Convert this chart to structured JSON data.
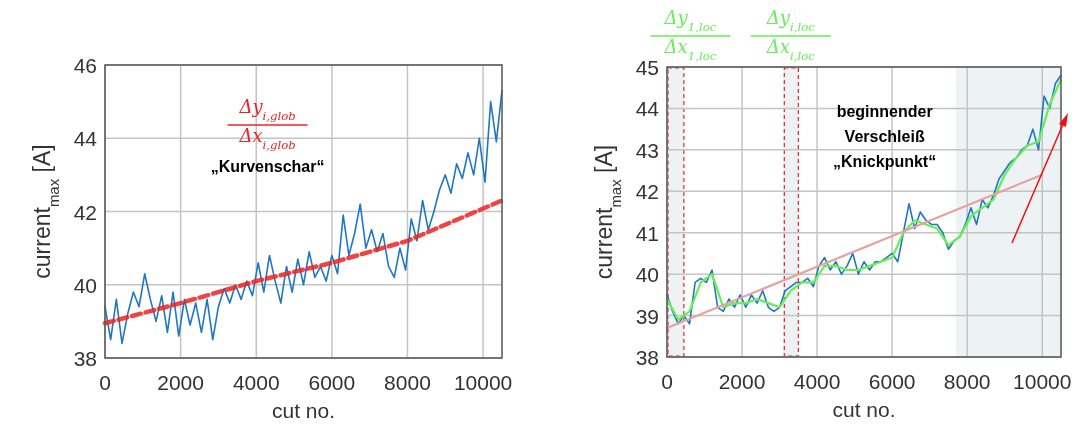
{
  "chart_data": [
    {
      "type": "line",
      "xlabel": "cut no.",
      "ylabel": "current$_{max}$ [A]",
      "xlim": [
        0,
        10500
      ],
      "ylim": [
        38,
        46
      ],
      "xticks": [
        0,
        2000,
        4000,
        6000,
        8000,
        10000
      ],
      "yticks": [
        38,
        40,
        42,
        44,
        46
      ],
      "grid": true,
      "annotations": [
        "Δy$_{i,glob}$",
        "Δx$_{i,glob}$",
        "„Kurvenschar“"
      ],
      "series": [
        {
          "color": "#1f77c4",
          "x": [
            0,
            150,
            300,
            450,
            600,
            750,
            900,
            1050,
            1200,
            1350,
            1500,
            1650,
            1800,
            1950,
            2100,
            2250,
            2400,
            2550,
            2700,
            2850,
            3000,
            3150,
            3300,
            3450,
            3600,
            3750,
            3900,
            4050,
            4200,
            4350,
            4500,
            4650,
            4800,
            4950,
            5100,
            5250,
            5400,
            5550,
            5700,
            5850,
            6000,
            6150,
            6300,
            6450,
            6600,
            6750,
            6900,
            7050,
            7200,
            7350,
            7500,
            7650,
            7800,
            7950,
            8100,
            8250,
            8400,
            8550,
            8700,
            8850,
            9000,
            9150,
            9300,
            9450,
            9600,
            9750,
            9900,
            10050,
            10200,
            10350,
            10500
          ],
          "values": [
            39.4,
            38.5,
            39.6,
            38.4,
            39.2,
            39.8,
            39.4,
            40.3,
            39.6,
            39.0,
            39.7,
            38.7,
            39.8,
            38.6,
            39.6,
            38.9,
            39.5,
            38.7,
            39.6,
            38.5,
            39.4,
            39.9,
            39.5,
            40.0,
            39.6,
            40.1,
            39.7,
            40.6,
            39.8,
            40.8,
            40.1,
            39.5,
            40.5,
            39.8,
            40.7,
            40.0,
            40.9,
            40.2,
            40.5,
            40.1,
            40.8,
            40.3,
            41.9,
            40.8,
            41.4,
            42.2,
            41.0,
            41.5,
            40.9,
            41.4,
            40.5,
            40.2,
            41.0,
            40.4,
            41.8,
            41.2,
            42.3,
            41.5,
            42.0,
            42.6,
            43.0,
            42.5,
            43.3,
            42.9,
            43.6,
            43.0,
            44.0,
            42.8,
            45.0,
            43.9,
            45.3
          ]
        },
        {
          "color": "#ee2222",
          "line_style": "dashed",
          "x": [
            0,
            2000,
            4000,
            6000,
            8000,
            10500
          ],
          "values": [
            38.95,
            39.5,
            40.1,
            40.6,
            41.2,
            42.3
          ]
        }
      ]
    },
    {
      "type": "line",
      "xlabel": "cut no.",
      "ylabel": "current$_{max}$ [A]",
      "xlim": [
        0,
        10500
      ],
      "ylim": [
        38,
        45
      ],
      "xticks": [
        0,
        2000,
        4000,
        6000,
        8000,
        10000
      ],
      "yticks": [
        38,
        39,
        40,
        41,
        42,
        43,
        44,
        45
      ],
      "grid": true,
      "annotations": [
        "Δy$_{1,loc}$",
        "Δx$_{1,loc}$",
        "Δy$_{i,loc}$",
        "Δx$_{i,loc}$",
        "beginnender Verschleiß „Knickpunkt“"
      ],
      "bands": [
        {
          "axis": "x",
          "from": 0,
          "to": 450,
          "color": "#edf2f5"
        },
        {
          "axis": "x",
          "from": 3100,
          "to": 3500,
          "color": "#edf2f5"
        },
        {
          "axis": "x",
          "from": 7700,
          "to": 10500,
          "color": "#edf2f5"
        }
      ],
      "series": [
        {
          "color": "#1f77c4",
          "x": [
            0,
            150,
            300,
            450,
            600,
            750,
            900,
            1050,
            1200,
            1350,
            1500,
            1650,
            1800,
            1950,
            2100,
            2250,
            2400,
            2550,
            2700,
            2850,
            3000,
            3150,
            3300,
            3450,
            3600,
            3750,
            3900,
            4050,
            4200,
            4350,
            4500,
            4650,
            4800,
            4950,
            5100,
            5250,
            5400,
            5550,
            5700,
            5850,
            6000,
            6150,
            6300,
            6450,
            6600,
            6750,
            6900,
            7050,
            7200,
            7350,
            7500,
            7650,
            7800,
            7950,
            8100,
            8250,
            8400,
            8550,
            8700,
            8850,
            9000,
            9150,
            9300,
            9450,
            9600,
            9750,
            9900,
            10050,
            10200,
            10350,
            10500
          ],
          "values": [
            39.5,
            39.1,
            38.8,
            39.0,
            38.8,
            39.8,
            39.9,
            39.8,
            40.1,
            39.2,
            39.1,
            39.4,
            39.2,
            39.5,
            39.2,
            39.5,
            39.3,
            39.6,
            39.2,
            39.1,
            39.2,
            39.6,
            39.7,
            39.8,
            39.8,
            39.9,
            39.7,
            40.2,
            40.4,
            40.1,
            40.3,
            40.0,
            40.2,
            40.5,
            40.0,
            40.3,
            40.1,
            40.3,
            40.3,
            40.4,
            40.5,
            40.3,
            41.0,
            41.7,
            41.1,
            41.5,
            41.3,
            41.2,
            41.2,
            41.0,
            40.6,
            40.8,
            40.9,
            41.2,
            41.6,
            41.2,
            41.8,
            41.6,
            41.9,
            42.3,
            42.5,
            42.7,
            42.8,
            43.0,
            43.1,
            43.5,
            43.0,
            44.3,
            44.0,
            44.6,
            44.8
          ]
        },
        {
          "color": "#66ee55",
          "x": [
            0,
            300,
            600,
            900,
            1200,
            1500,
            1800,
            2100,
            2400,
            2700,
            3000,
            3300,
            3600,
            3900,
            4200,
            4500,
            4800,
            5100,
            5400,
            5700,
            6000,
            6300,
            6600,
            6900,
            7200,
            7500,
            7800,
            8100,
            8400,
            8700,
            9000,
            9300,
            9600,
            9900,
            10200,
            10500
          ],
          "values": [
            39.4,
            38.9,
            39.1,
            39.8,
            40.0,
            39.2,
            39.3,
            39.3,
            39.4,
            39.3,
            39.2,
            39.6,
            39.8,
            39.8,
            40.2,
            40.2,
            40.1,
            40.1,
            40.2,
            40.3,
            40.4,
            41.0,
            41.3,
            41.2,
            41.1,
            40.7,
            40.9,
            41.4,
            41.6,
            41.8,
            42.4,
            42.8,
            43.1,
            43.2,
            44.1,
            44.7
          ]
        },
        {
          "color": "#e8a0a0",
          "x": [
            0,
            10000
          ],
          "values": [
            38.7,
            42.4
          ]
        }
      ]
    }
  ]
}
